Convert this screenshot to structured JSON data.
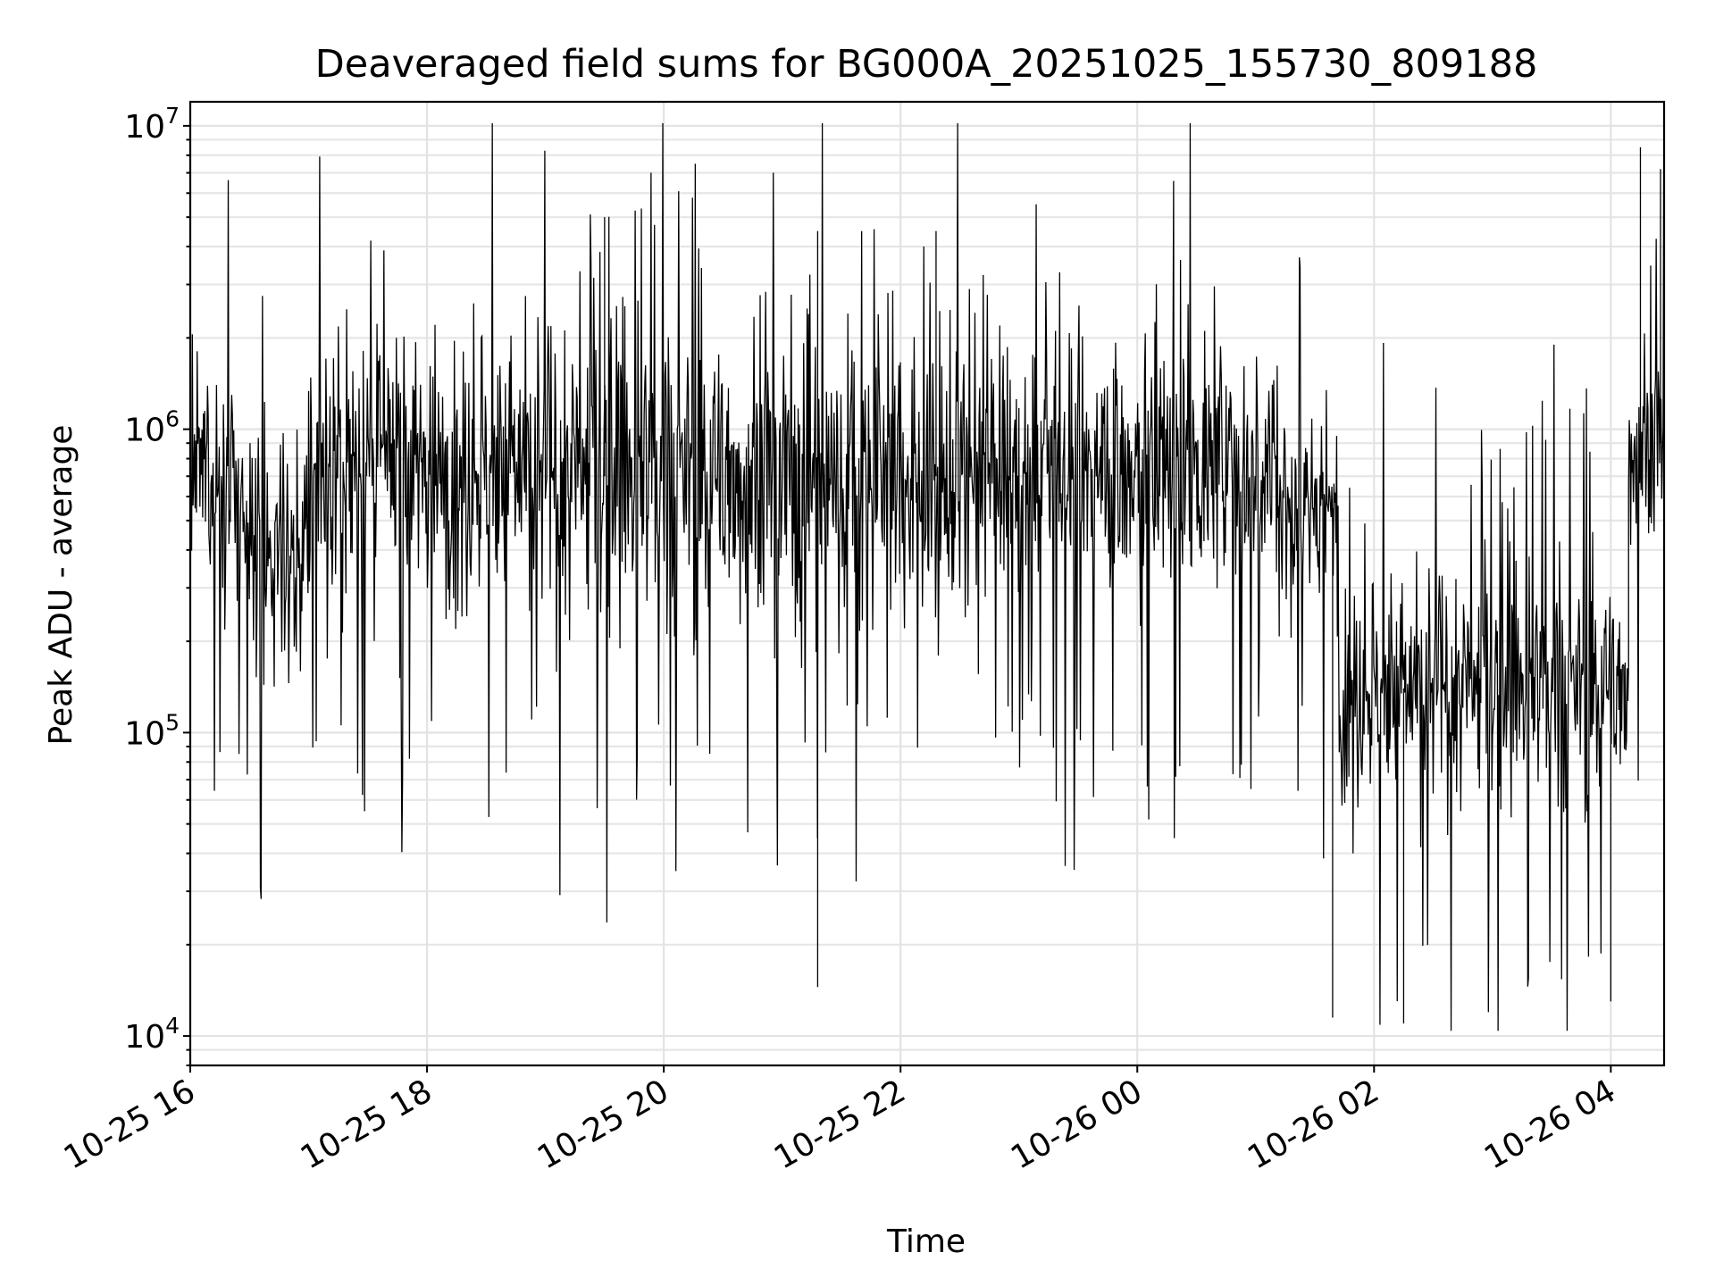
{
  "chart_data": {
    "type": "line",
    "title": "Deaveraged field sums for BG000A_20251025_155730_809188",
    "xlabel": "Time",
    "ylabel": "Peak ADU - average",
    "y_scale": "log",
    "ylim": [
      8000,
      12000000
    ],
    "xlim_hours": [
      16.0,
      28.45
    ],
    "x_ticks": [
      {
        "hour": 16,
        "label": "10-25 16"
      },
      {
        "hour": 18,
        "label": "10-25 18"
      },
      {
        "hour": 20,
        "label": "10-25 20"
      },
      {
        "hour": 22,
        "label": "10-25 22"
      },
      {
        "hour": 24,
        "label": "10-26 00"
      },
      {
        "hour": 26,
        "label": "10-26 02"
      },
      {
        "hour": 28,
        "label": "10-26 04"
      }
    ],
    "y_ticks": [
      {
        "value": 10000,
        "base": "10",
        "exp": "4"
      },
      {
        "value": 100000,
        "base": "10",
        "exp": "5"
      },
      {
        "value": 1000000,
        "base": "10",
        "exp": "6"
      },
      {
        "value": 10000000,
        "base": "10",
        "exp": "7"
      }
    ],
    "grid": true,
    "series": [
      {
        "name": "field sums",
        "color": "#000000",
        "segments": [
          {
            "start_hour": 16.0,
            "end_hour": 16.4,
            "median": 700000,
            "spread_decades": 0.55,
            "step_minutes": 0.35
          },
          {
            "start_hour": 16.4,
            "end_hour": 17.0,
            "median": 400000,
            "spread_decades": 0.65,
            "step_minutes": 0.35
          },
          {
            "start_hour": 17.0,
            "end_hour": 19.0,
            "median": 750000,
            "spread_decades": 0.75,
            "step_minutes": 0.35
          },
          {
            "start_hour": 19.0,
            "end_hour": 23.0,
            "median": 700000,
            "spread_decades": 0.8,
            "step_minutes": 0.35
          },
          {
            "start_hour": 23.0,
            "end_hour": 25.2,
            "median": 750000,
            "spread_decades": 0.7,
            "step_minutes": 0.35
          },
          {
            "start_hour": 25.2,
            "end_hour": 25.7,
            "median": 550000,
            "spread_decades": 0.55,
            "step_minutes": 0.35
          },
          {
            "start_hour": 25.7,
            "end_hour": 28.15,
            "median": 140000,
            "spread_decades": 0.6,
            "step_minutes": 0.35
          },
          {
            "start_hour": 28.15,
            "end_hour": 28.45,
            "median": 900000,
            "spread_decades": 0.55,
            "step_minutes": 0.35
          }
        ],
        "notable_peaks": [
          {
            "hour": 19.5,
            "value": 5000000
          },
          {
            "hour": 21.3,
            "value": 4500000
          },
          {
            "hour": 22.3,
            "value": 4500000
          },
          {
            "hour": 28.25,
            "value": 8500000
          },
          {
            "hour": 28.42,
            "value": 7200000
          }
        ],
        "notable_minima": [
          {
            "hour": 21.3,
            "value": 14500
          },
          {
            "hour": 25.65,
            "value": 11500
          },
          {
            "hour": 26.25,
            "value": 11000
          },
          {
            "hour": 28.0,
            "value": 13000
          }
        ]
      }
    ]
  }
}
